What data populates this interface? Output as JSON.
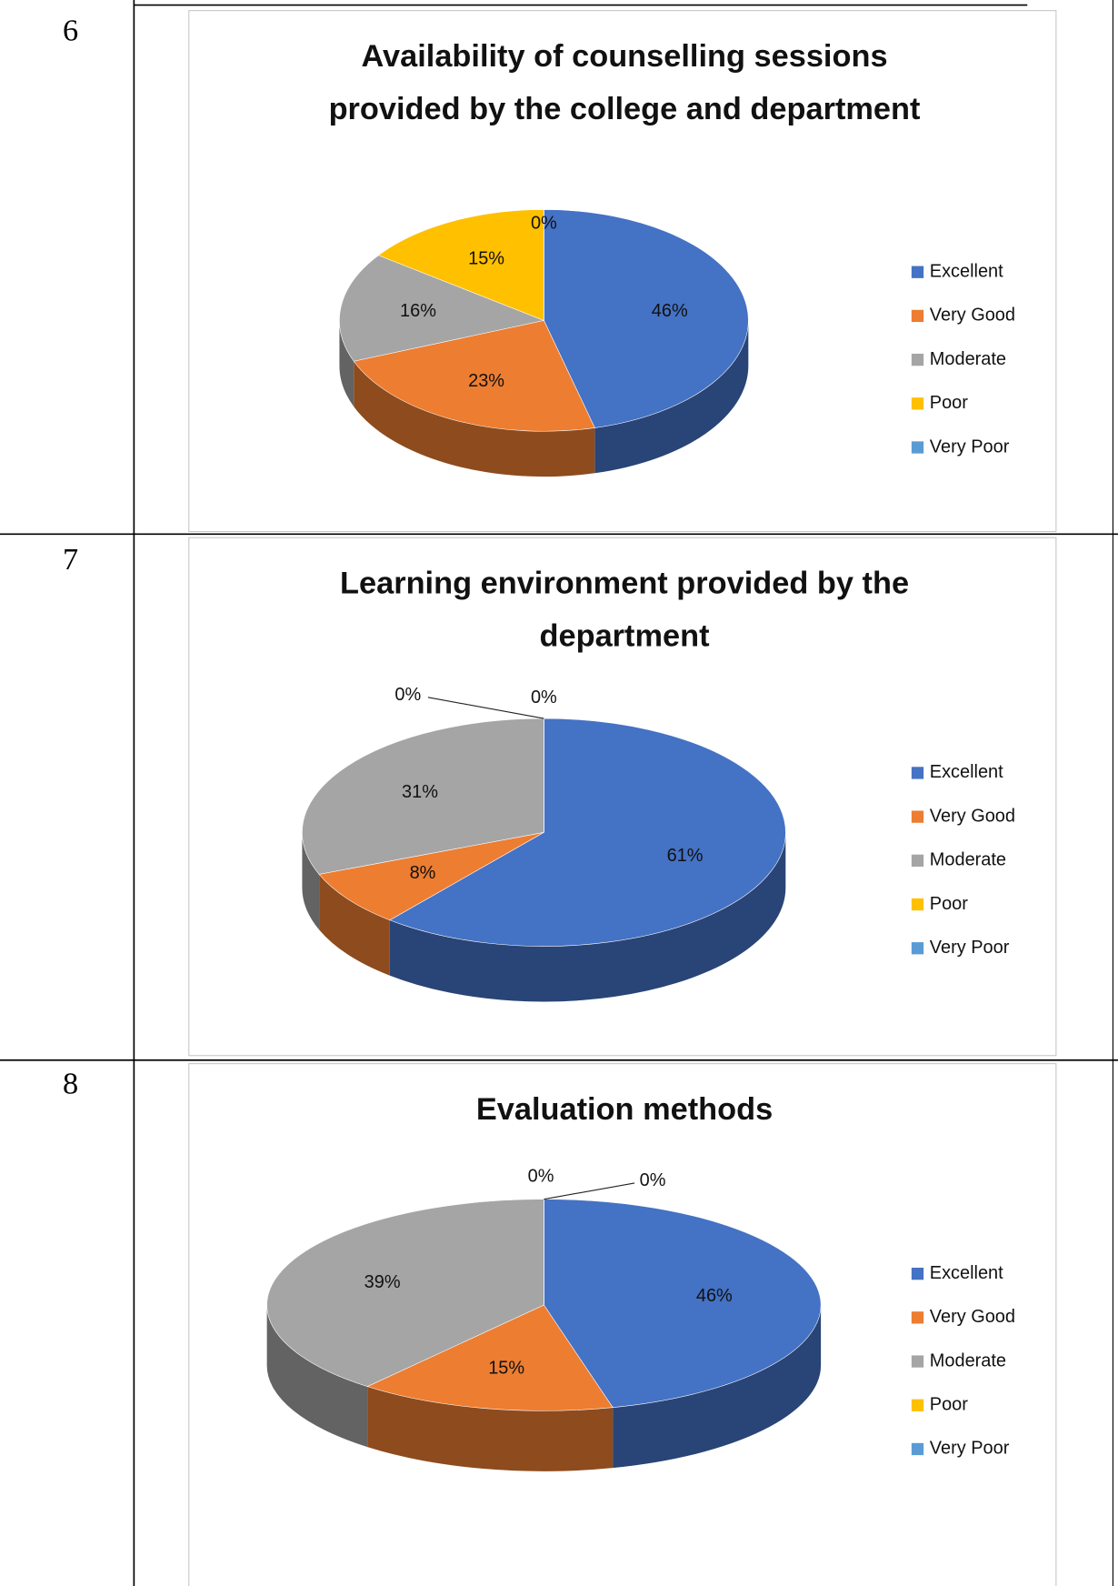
{
  "row_numbers": [
    "6",
    "7",
    "8"
  ],
  "chart_data": [
    {
      "type": "pie",
      "title": "Availability of counselling sessions provided by the college and department",
      "categories": [
        "Excellent",
        "Very Good",
        "Moderate",
        "Poor",
        "Very Poor"
      ],
      "values": [
        46,
        23,
        16,
        15,
        0
      ],
      "value_labels": [
        "46%",
        "23%",
        "16%",
        "15%",
        "0%"
      ],
      "colors": [
        "#4472c4",
        "#ed7d31",
        "#a5a5a5",
        "#ffc000",
        "#5b9bd5"
      ]
    },
    {
      "type": "pie",
      "title": "Learning environment provided by the department",
      "categories": [
        "Excellent",
        "Very Good",
        "Moderate",
        "Poor",
        "Very Poor"
      ],
      "values": [
        61,
        8,
        31,
        0,
        0
      ],
      "value_labels": [
        "61%",
        "8%",
        "31%",
        "0%",
        "0%"
      ],
      "colors": [
        "#4472c4",
        "#ed7d31",
        "#a5a5a5",
        "#ffc000",
        "#5b9bd5"
      ]
    },
    {
      "type": "pie",
      "title": "Evaluation methods",
      "categories": [
        "Excellent",
        "Very Good",
        "Moderate",
        "Poor",
        "Very Poor"
      ],
      "values": [
        46,
        15,
        39,
        0,
        0
      ],
      "value_labels": [
        "46%",
        "15%",
        "39%",
        "0%",
        "0%"
      ],
      "colors": [
        "#4472c4",
        "#ed7d31",
        "#a5a5a5",
        "#ffc000",
        "#5b9bd5"
      ]
    }
  ]
}
